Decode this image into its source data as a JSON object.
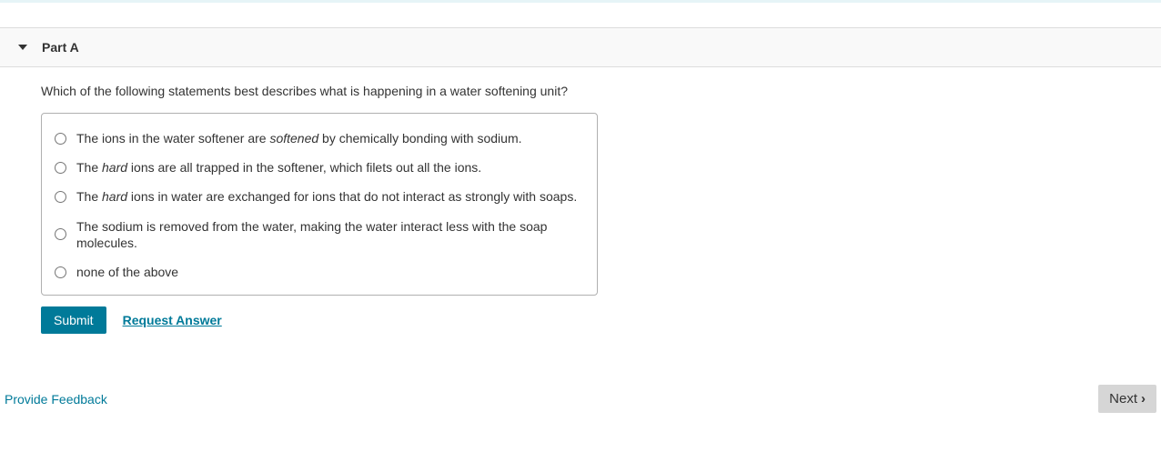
{
  "colors": {
    "primary": "#007a99",
    "text": "#333333",
    "header_bg": "#f9f9f9",
    "border": "#dddddd",
    "options_border": "#b0b0b0",
    "next_bg": "#d6d6d6",
    "top_strip": "#e6f4f7"
  },
  "part": {
    "label": "Part A"
  },
  "question": {
    "text": "Which of the following statements best describes what is happening in a water softening unit?"
  },
  "options": [
    {
      "pre": "The ions in the water softener are ",
      "em": "softened",
      "post": " by chemically bonding with sodium."
    },
    {
      "pre": "The ",
      "em": "hard",
      "post": " ions are all trapped in the softener, which filets out all the ions."
    },
    {
      "pre": "The ",
      "em": "hard",
      "post": " ions in water are exchanged for ions that do not interact as strongly with soaps."
    },
    {
      "pre": "The sodium is removed from the water, making the water interact less with the soap molecules.",
      "em": "",
      "post": ""
    },
    {
      "pre": "none of the above",
      "em": "",
      "post": ""
    }
  ],
  "actions": {
    "submit_label": "Submit",
    "request_label": "Request Answer"
  },
  "footer": {
    "feedback_label": "Provide Feedback",
    "next_label": "Next"
  }
}
